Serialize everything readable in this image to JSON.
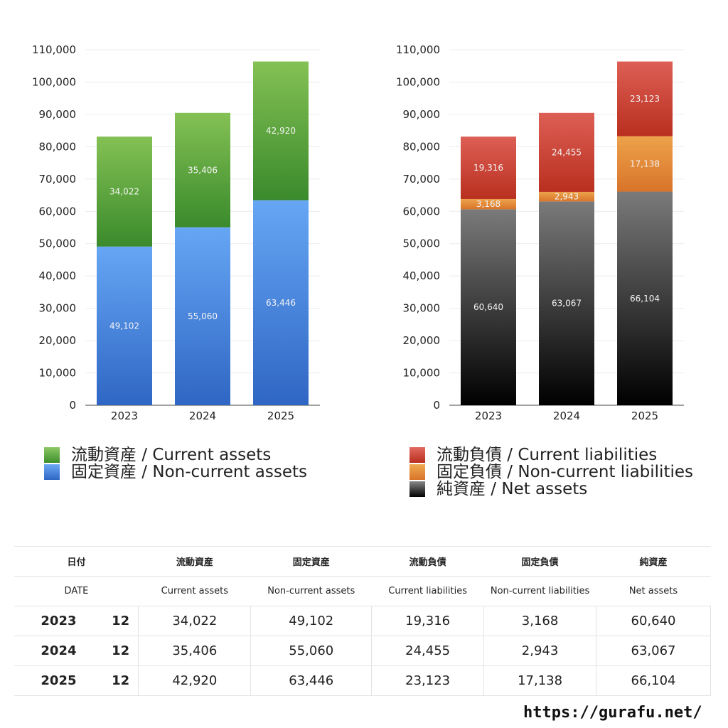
{
  "chart_data": [
    {
      "type": "bar",
      "stacked": true,
      "categories": [
        "2023",
        "2024",
        "2025"
      ],
      "ylim": [
        0,
        110000
      ],
      "yticks": [
        0,
        10000,
        20000,
        30000,
        40000,
        50000,
        60000,
        70000,
        80000,
        90000,
        100000,
        110000
      ],
      "series": [
        {
          "name": "固定資産 / Non-current assets",
          "values": [
            49102,
            55060,
            63446
          ],
          "color_top": "#66a6f4",
          "color_bottom": "#2f66c4"
        },
        {
          "name": "流動資産 / Current assets",
          "values": [
            34022,
            35406,
            42920
          ],
          "color_top": "#84c154",
          "color_bottom": "#3a8a2c"
        }
      ]
    },
    {
      "type": "bar",
      "stacked": true,
      "categories": [
        "2023",
        "2024",
        "2025"
      ],
      "ylim": [
        0,
        110000
      ],
      "yticks": [
        0,
        10000,
        20000,
        30000,
        40000,
        50000,
        60000,
        70000,
        80000,
        90000,
        100000,
        110000
      ],
      "series": [
        {
          "name": "純資産 / Net assets",
          "values": [
            60640,
            63067,
            66104
          ],
          "color_top": "#7a7a7a",
          "color_bottom": "#000000"
        },
        {
          "name": "固定負債 / Non-current liabilities",
          "values": [
            3168,
            2943,
            17138
          ],
          "color_top": "#eda24a",
          "color_bottom": "#d8742a"
        },
        {
          "name": "流動負債 / Current liabilities",
          "values": [
            19316,
            24455,
            23123
          ],
          "color_top": "#dd5f55",
          "color_bottom": "#b92f1f"
        }
      ]
    }
  ],
  "legend_left": [
    {
      "label": "流動資産 / Current assets",
      "color": "#4f9f3a"
    },
    {
      "label": "固定資産 / Non-current assets",
      "color": "#4a8ae0"
    }
  ],
  "legend_right": [
    {
      "label": "流動負債 / Current liabilities",
      "color": "#d0473b"
    },
    {
      "label": "固定負債 / Non-current liabilities",
      "color": "#e58a36"
    },
    {
      "label": "純資産 / Net assets",
      "color": "#2a2a2a"
    }
  ],
  "table": {
    "header_jp": {
      "date": "日付",
      "ca": "流動資産",
      "nca": "固定資産",
      "cl": "流動負債",
      "ncl": "固定負債",
      "na": "純資産"
    },
    "header_en": {
      "date": "DATE",
      "ca": "Current assets",
      "nca": "Non-current assets",
      "cl": "Current liabilities",
      "ncl": "Non-current liabilities",
      "na": "Net assets"
    },
    "rows": [
      {
        "year": "2023",
        "month": "12",
        "ca": "34,022",
        "nca": "49,102",
        "cl": "19,316",
        "ncl": "3,168",
        "na": "60,640"
      },
      {
        "year": "2024",
        "month": "12",
        "ca": "35,406",
        "nca": "55,060",
        "cl": "24,455",
        "ncl": "2,943",
        "na": "63,067"
      },
      {
        "year": "2025",
        "month": "12",
        "ca": "42,920",
        "nca": "63,446",
        "cl": "23,123",
        "ncl": "17,138",
        "na": "66,104"
      }
    ]
  },
  "site_url": "https://gurafu.net/"
}
